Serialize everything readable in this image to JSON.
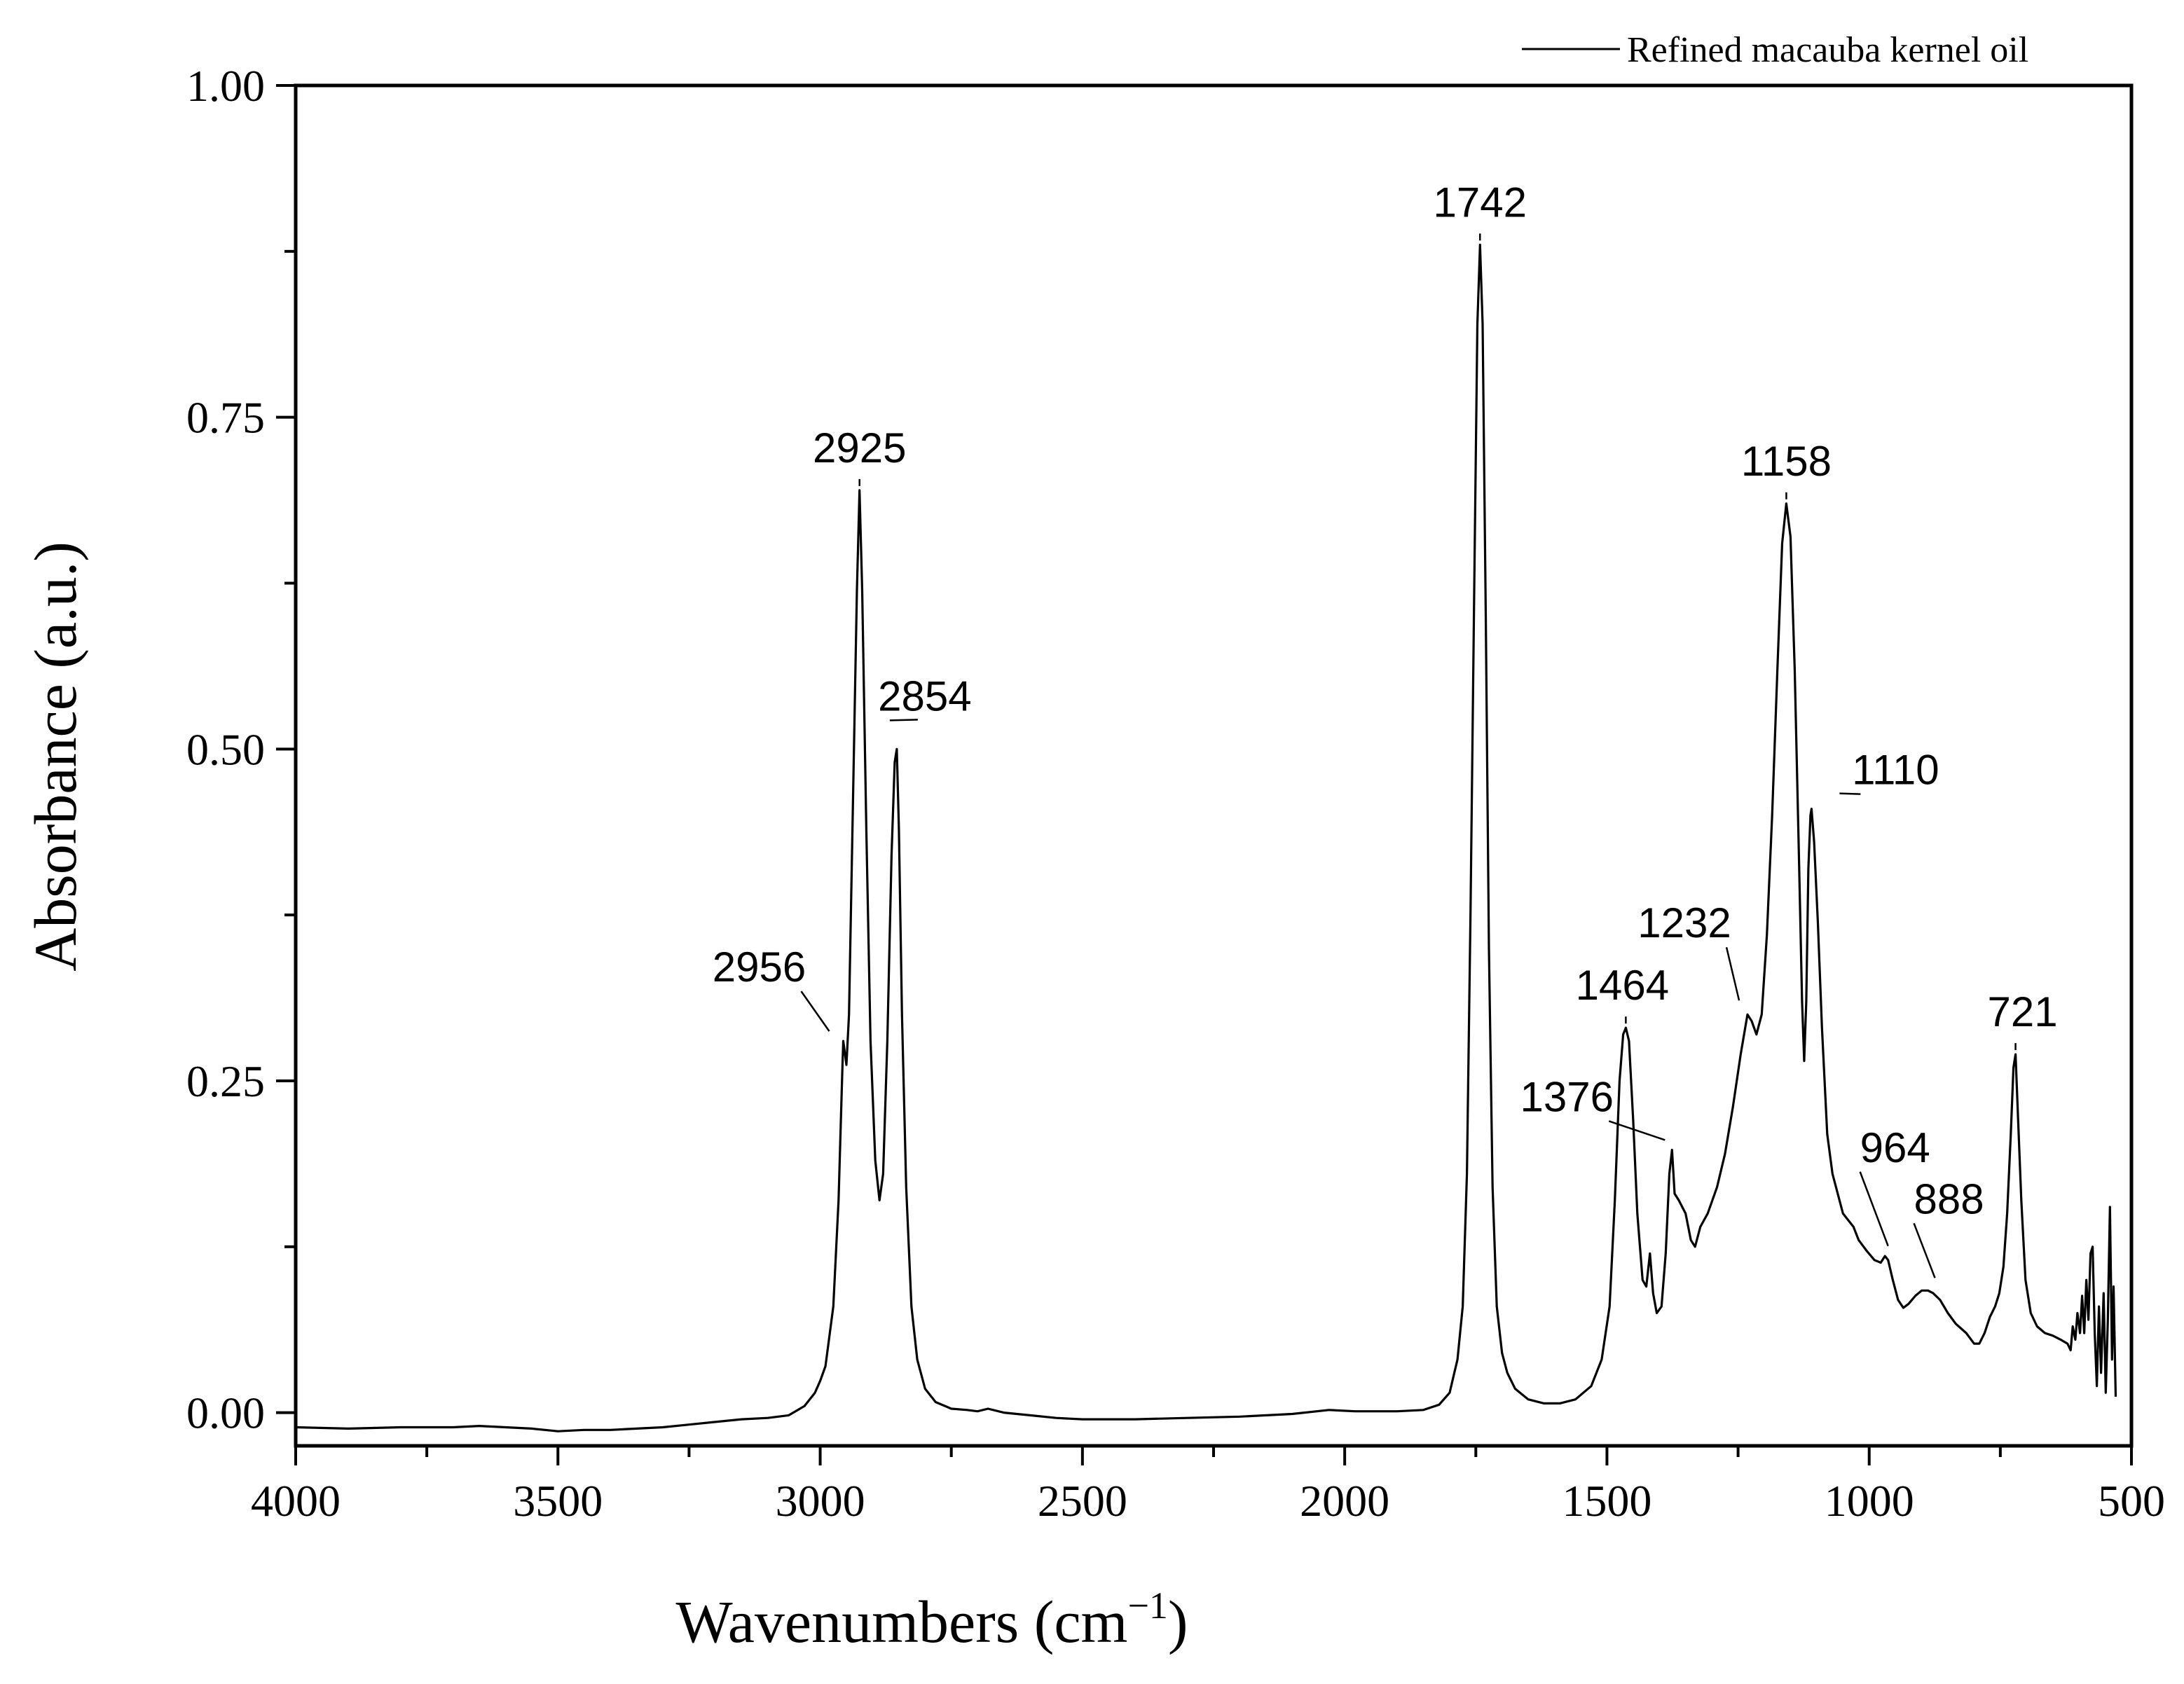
{
  "chart_data": {
    "type": "line",
    "title": "",
    "xlabel": "Wavenumbers (cm",
    "xlabel_superscript": "−1",
    "xlabel_close": ")",
    "ylabel": "Absorbance (a.u.)",
    "xlim": [
      4000,
      500
    ],
    "ylim": [
      -0.025,
      1.0
    ],
    "x_ticks": [
      4000,
      3500,
      3000,
      2500,
      2000,
      1500,
      1000,
      500
    ],
    "x_tick_labels": [
      "4000",
      "3500",
      "3000",
      "2500",
      "2000",
      "1500",
      "1000",
      "500"
    ],
    "y_ticks": [
      0.0,
      0.25,
      0.5,
      0.75,
      1.0
    ],
    "y_tick_labels": [
      "0.00",
      "0.25",
      "0.50",
      "0.75",
      "1.00"
    ],
    "x_minor_ticks": [
      3750,
      3250,
      2750,
      2250,
      1750,
      1250,
      750
    ],
    "y_minor_ticks": [
      0.125,
      0.375,
      0.625,
      0.875
    ],
    "legend": {
      "position": "top-right",
      "entries": [
        "Refined macauba kernel oil"
      ]
    },
    "series": [
      {
        "name": "Refined macauba kernel oil",
        "color": "#000000",
        "points": [
          [
            4000,
            -0.011
          ],
          [
            3900,
            -0.012
          ],
          [
            3800,
            -0.011
          ],
          [
            3700,
            -0.011
          ],
          [
            3650,
            -0.01
          ],
          [
            3600,
            -0.011
          ],
          [
            3550,
            -0.012
          ],
          [
            3500,
            -0.014
          ],
          [
            3450,
            -0.013
          ],
          [
            3400,
            -0.013
          ],
          [
            3350,
            -0.012
          ],
          [
            3300,
            -0.011
          ],
          [
            3250,
            -0.009
          ],
          [
            3200,
            -0.007
          ],
          [
            3150,
            -0.005
          ],
          [
            3100,
            -0.004
          ],
          [
            3060,
            -0.002
          ],
          [
            3030,
            0.005
          ],
          [
            3010,
            0.015
          ],
          [
            3000,
            0.024
          ],
          [
            2990,
            0.035
          ],
          [
            2975,
            0.08
          ],
          [
            2965,
            0.16
          ],
          [
            2958,
            0.255
          ],
          [
            2956,
            0.28
          ],
          [
            2950,
            0.262
          ],
          [
            2945,
            0.3
          ],
          [
            2938,
            0.45
          ],
          [
            2930,
            0.62
          ],
          [
            2925,
            0.695
          ],
          [
            2920,
            0.62
          ],
          [
            2912,
            0.44
          ],
          [
            2904,
            0.28
          ],
          [
            2895,
            0.19
          ],
          [
            2887,
            0.16
          ],
          [
            2880,
            0.18
          ],
          [
            2872,
            0.28
          ],
          [
            2864,
            0.42
          ],
          [
            2858,
            0.49
          ],
          [
            2854,
            0.5
          ],
          [
            2850,
            0.44
          ],
          [
            2844,
            0.3
          ],
          [
            2836,
            0.17
          ],
          [
            2826,
            0.08
          ],
          [
            2815,
            0.04
          ],
          [
            2800,
            0.018
          ],
          [
            2780,
            0.008
          ],
          [
            2750,
            0.003
          ],
          [
            2720,
            0.002
          ],
          [
            2700,
            0.001
          ],
          [
            2680,
            0.003
          ],
          [
            2650,
            0.0
          ],
          [
            2600,
            -0.002
          ],
          [
            2550,
            -0.004
          ],
          [
            2500,
            -0.005
          ],
          [
            2400,
            -0.005
          ],
          [
            2300,
            -0.004
          ],
          [
            2200,
            -0.003
          ],
          [
            2100,
            -0.001
          ],
          [
            2030,
            0.002
          ],
          [
            1980,
            0.001
          ],
          [
            1900,
            0.001
          ],
          [
            1850,
            0.002
          ],
          [
            1820,
            0.006
          ],
          [
            1800,
            0.015
          ],
          [
            1785,
            0.04
          ],
          [
            1775,
            0.08
          ],
          [
            1767,
            0.18
          ],
          [
            1760,
            0.38
          ],
          [
            1753,
            0.62
          ],
          [
            1747,
            0.82
          ],
          [
            1742,
            0.88
          ],
          [
            1737,
            0.82
          ],
          [
            1731,
            0.6
          ],
          [
            1725,
            0.35
          ],
          [
            1718,
            0.17
          ],
          [
            1710,
            0.08
          ],
          [
            1700,
            0.045
          ],
          [
            1690,
            0.03
          ],
          [
            1675,
            0.018
          ],
          [
            1650,
            0.01
          ],
          [
            1620,
            0.007
          ],
          [
            1590,
            0.007
          ],
          [
            1560,
            0.01
          ],
          [
            1530,
            0.02
          ],
          [
            1510,
            0.04
          ],
          [
            1495,
            0.08
          ],
          [
            1485,
            0.16
          ],
          [
            1476,
            0.25
          ],
          [
            1469,
            0.285
          ],
          [
            1464,
            0.29
          ],
          [
            1458,
            0.28
          ],
          [
            1450,
            0.22
          ],
          [
            1442,
            0.15
          ],
          [
            1432,
            0.1
          ],
          [
            1425,
            0.095
          ],
          [
            1418,
            0.12
          ],
          [
            1412,
            0.09
          ],
          [
            1405,
            0.075
          ],
          [
            1396,
            0.08
          ],
          [
            1388,
            0.12
          ],
          [
            1381,
            0.18
          ],
          [
            1376,
            0.198
          ],
          [
            1371,
            0.165
          ],
          [
            1363,
            0.16
          ],
          [
            1350,
            0.15
          ],
          [
            1340,
            0.13
          ],
          [
            1332,
            0.125
          ],
          [
            1322,
            0.14
          ],
          [
            1308,
            0.15
          ],
          [
            1290,
            0.17
          ],
          [
            1275,
            0.195
          ],
          [
            1260,
            0.23
          ],
          [
            1245,
            0.27
          ],
          [
            1232,
            0.3
          ],
          [
            1224,
            0.295
          ],
          [
            1215,
            0.285
          ],
          [
            1205,
            0.3
          ],
          [
            1195,
            0.36
          ],
          [
            1185,
            0.45
          ],
          [
            1175,
            0.56
          ],
          [
            1166,
            0.655
          ],
          [
            1158,
            0.685
          ],
          [
            1150,
            0.66
          ],
          [
            1142,
            0.56
          ],
          [
            1134,
            0.42
          ],
          [
            1128,
            0.31
          ],
          [
            1124,
            0.265
          ],
          [
            1120,
            0.31
          ],
          [
            1116,
            0.41
          ],
          [
            1112,
            0.45
          ],
          [
            1110,
            0.455
          ],
          [
            1105,
            0.43
          ],
          [
            1098,
            0.37
          ],
          [
            1090,
            0.29
          ],
          [
            1080,
            0.21
          ],
          [
            1070,
            0.18
          ],
          [
            1060,
            0.165
          ],
          [
            1050,
            0.15
          ],
          [
            1040,
            0.145
          ],
          [
            1030,
            0.14
          ],
          [
            1020,
            0.13
          ],
          [
            1005,
            0.122
          ],
          [
            990,
            0.115
          ],
          [
            978,
            0.113
          ],
          [
            970,
            0.118
          ],
          [
            964,
            0.115
          ],
          [
            955,
            0.1
          ],
          [
            945,
            0.085
          ],
          [
            935,
            0.079
          ],
          [
            925,
            0.082
          ],
          [
            912,
            0.088
          ],
          [
            900,
            0.092
          ],
          [
            888,
            0.092
          ],
          [
            878,
            0.09
          ],
          [
            865,
            0.085
          ],
          [
            850,
            0.075
          ],
          [
            835,
            0.067
          ],
          [
            815,
            0.06
          ],
          [
            800,
            0.052
          ],
          [
            790,
            0.052
          ],
          [
            780,
            0.06
          ],
          [
            770,
            0.072
          ],
          [
            760,
            0.08
          ],
          [
            752,
            0.09
          ],
          [
            744,
            0.11
          ],
          [
            737,
            0.15
          ],
          [
            730,
            0.21
          ],
          [
            725,
            0.26
          ],
          [
            721,
            0.27
          ],
          [
            716,
            0.22
          ],
          [
            710,
            0.16
          ],
          [
            702,
            0.1
          ],
          [
            692,
            0.075
          ],
          [
            680,
            0.065
          ],
          [
            665,
            0.06
          ],
          [
            650,
            0.058
          ],
          [
            635,
            0.055
          ],
          [
            622,
            0.052
          ],
          [
            616,
            0.047
          ],
          [
            612,
            0.065
          ],
          [
            607,
            0.055
          ],
          [
            603,
            0.075
          ],
          [
            598,
            0.06
          ],
          [
            594,
            0.088
          ],
          [
            590,
            0.06
          ],
          [
            586,
            0.1
          ],
          [
            582,
            0.07
          ],
          [
            578,
            0.12
          ],
          [
            574,
            0.125
          ],
          [
            570,
            0.06
          ],
          [
            566,
            0.02
          ],
          [
            562,
            0.08
          ],
          [
            558,
            0.03
          ],
          [
            553,
            0.09
          ],
          [
            549,
            0.015
          ],
          [
            545,
            0.07
          ],
          [
            541,
            0.155
          ],
          [
            537,
            0.04
          ],
          [
            534,
            0.095
          ],
          [
            530,
            0.012
          ]
        ]
      }
    ],
    "annotations": [
      {
        "text": "2925",
        "x": 2925,
        "y": 0.695,
        "leader": false
      },
      {
        "text": "2854",
        "x": 2854,
        "y": 0.5,
        "leader": true
      },
      {
        "text": "2956",
        "x": 2956,
        "y": 0.28,
        "leader": true
      },
      {
        "text": "1742",
        "x": 1742,
        "y": 0.88,
        "leader": false
      },
      {
        "text": "1158",
        "x": 1158,
        "y": 0.685,
        "leader": false
      },
      {
        "text": "1110",
        "x": 1110,
        "y": 0.455,
        "leader": true
      },
      {
        "text": "1232",
        "x": 1232,
        "y": 0.3,
        "leader": true
      },
      {
        "text": "1464",
        "x": 1464,
        "y": 0.29,
        "leader": false
      },
      {
        "text": "1376",
        "x": 1376,
        "y": 0.198,
        "leader": true
      },
      {
        "text": "964",
        "x": 964,
        "y": 0.115,
        "leader": true
      },
      {
        "text": "888",
        "x": 888,
        "y": 0.092,
        "leader": true
      },
      {
        "text": "721",
        "x": 721,
        "y": 0.27,
        "leader": false
      }
    ]
  }
}
